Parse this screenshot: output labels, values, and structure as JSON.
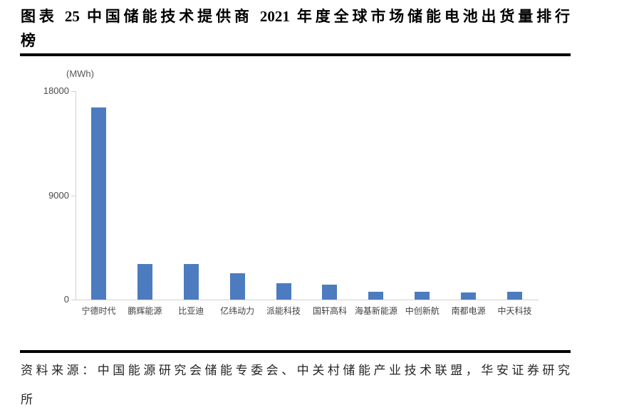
{
  "figure": {
    "title_line1": "图表 25 中国储能技术提供商 2021 年度全球市场储能电池出货量排行",
    "title_line2": "榜"
  },
  "source": {
    "line1": "资料来源：中国能源研究会储能专委会、中关村储能产业技术联盟，华安证券研究",
    "line2": "所"
  },
  "chart_data": {
    "type": "bar",
    "title": "中国储能技术提供商2021年度全球市场储能电池出货量排行榜",
    "unit_label": "(MWh)",
    "categories": [
      "宁德时代",
      "鹏辉能源",
      "比亚迪",
      "亿纬动力",
      "派能科技",
      "国轩高科",
      "海基新能源",
      "中创新航",
      "南都电源",
      "中天科技"
    ],
    "values": [
      16600,
      3100,
      3050,
      2260,
      1400,
      1290,
      700,
      660,
      620,
      660
    ],
    "xlabel": "",
    "ylabel": "MWh",
    "yticks": [
      0,
      9000,
      18000
    ],
    "ylim": [
      0,
      18000
    ],
    "grid": false,
    "legend_position": "none",
    "bar_color": "#4c7cbf",
    "axis_color": "#d2d2d2",
    "tick_label_color": "#4a4a4a"
  }
}
